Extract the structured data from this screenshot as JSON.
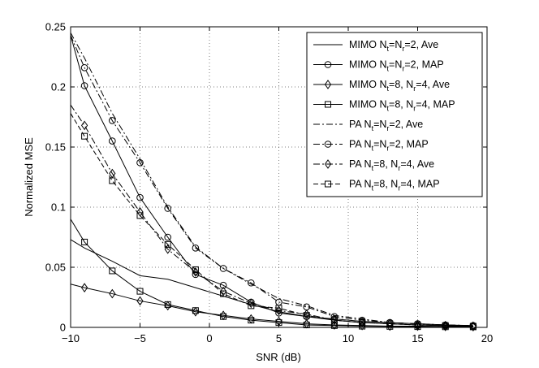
{
  "chart_data": {
    "type": "line",
    "title": "",
    "xlabel": "SNR (dB)",
    "ylabel": "Normalized MSE",
    "xlim": [
      -10,
      20
    ],
    "ylim": [
      0,
      0.25
    ],
    "xticks": [
      -10,
      -5,
      0,
      5,
      10,
      15,
      20
    ],
    "xtick_labels": [
      "−10",
      "−5",
      "0",
      "5",
      "10",
      "15",
      "20"
    ],
    "yticks": [
      0,
      0.05,
      0.1,
      0.15,
      0.2,
      0.25
    ],
    "ytick_labels": [
      "0",
      "0.05",
      "0.1",
      "0.15",
      "0.2",
      "0.25"
    ],
    "legend_position": "top-right",
    "series": [
      {
        "name": "MIMO Nt=Nr=2, Ave",
        "legend": {
          "prefix": "MIMO N",
          "s1": "t",
          "mid": "=N",
          "s2": "r",
          "suffix": "=2, Ave"
        },
        "style": "solid",
        "marker": "none",
        "x": [
          -10,
          -9,
          -7,
          -5,
          -3,
          -1,
          1,
          3,
          5,
          7,
          9,
          11,
          13,
          15,
          17,
          19
        ],
        "y": [
          0.073,
          0.066,
          0.055,
          0.043,
          0.04,
          0.033,
          0.026,
          0.019,
          0.013,
          0.009,
          0.006,
          0.004,
          0.003,
          0.002,
          0.0015,
          0.001
        ]
      },
      {
        "name": "MIMO Nt=Nr=2, MAP",
        "legend": {
          "prefix": "MIMO N",
          "s1": "t",
          "mid": "=N",
          "s2": "r",
          "suffix": "=2, MAP"
        },
        "style": "solid",
        "marker": "circle",
        "x": [
          -10,
          -9,
          -7,
          -5,
          -3,
          -1,
          1,
          3,
          5,
          7,
          9,
          11,
          13,
          15,
          17,
          19
        ],
        "y": [
          0.243,
          0.201,
          0.155,
          0.108,
          0.075,
          0.044,
          0.035,
          0.021,
          0.012,
          0.009,
          0.007,
          0.005,
          0.004,
          0.003,
          0.002,
          0.0015
        ]
      },
      {
        "name": "MIMO Nt=8, Nr=4, Ave",
        "legend": {
          "prefix": "MIMO N",
          "s1": "t",
          "mid": "=8, N",
          "s2": "r",
          "suffix": "=4, Ave"
        },
        "style": "solid",
        "marker": "diamond",
        "x": [
          -10,
          -9,
          -7,
          -5,
          -3,
          -1,
          1,
          3,
          5,
          7,
          9,
          11,
          13,
          15,
          17,
          19
        ],
        "y": [
          0.036,
          0.033,
          0.028,
          0.022,
          0.018,
          0.013,
          0.01,
          0.007,
          0.005,
          0.003,
          0.002,
          0.0015,
          0.001,
          0.001,
          0.0008,
          0.0006
        ]
      },
      {
        "name": "MIMO Nt=8, Nr=4, MAP",
        "legend": {
          "prefix": "MIMO N",
          "s1": "t",
          "mid": "=8, N",
          "s2": "r",
          "suffix": "=4, MAP"
        },
        "style": "solid",
        "marker": "square",
        "x": [
          -10,
          -9,
          -7,
          -5,
          -3,
          -1,
          1,
          3,
          5,
          7,
          9,
          11,
          13,
          15,
          17,
          19
        ],
        "y": [
          0.09,
          0.071,
          0.047,
          0.03,
          0.019,
          0.014,
          0.009,
          0.006,
          0.004,
          0.002,
          0.0015,
          0.001,
          0.0008,
          0.0006,
          0.0005,
          0.0004
        ]
      },
      {
        "name": "PA Nt=Nr=2, Ave",
        "legend": {
          "prefix": "PA N",
          "s1": "t",
          "mid": "=N",
          "s2": "r",
          "suffix": "=2, Ave"
        },
        "style": "dashdot",
        "marker": "none",
        "x": [
          -10,
          -9,
          -7,
          -5,
          -3,
          -1,
          1,
          3,
          5,
          7,
          9,
          11,
          13,
          15,
          17,
          19
        ],
        "y": [
          0.245,
          0.224,
          0.178,
          0.14,
          0.1,
          0.067,
          0.049,
          0.036,
          0.024,
          0.018,
          0.01,
          0.007,
          0.004,
          0.003,
          0.002,
          0.0015
        ]
      },
      {
        "name": "PA Nt=Nr=2, MAP",
        "legend": {
          "prefix": "PA N",
          "s1": "t",
          "mid": "=N",
          "s2": "r",
          "suffix": "=2, MAP"
        },
        "style": "dashdot",
        "marker": "circle",
        "x": [
          -10,
          -9,
          -7,
          -5,
          -3,
          -1,
          1,
          3,
          5,
          7,
          9,
          11,
          13,
          15,
          17,
          19
        ],
        "y": [
          0.243,
          0.216,
          0.172,
          0.137,
          0.099,
          0.066,
          0.049,
          0.037,
          0.021,
          0.017,
          0.009,
          0.006,
          0.004,
          0.003,
          0.002,
          0.0015
        ]
      },
      {
        "name": "PA Nt=8, Nr=4, Ave",
        "legend": {
          "prefix": "PA N",
          "s1": "t",
          "mid": "=8, N",
          "s2": "r",
          "suffix": "=4, Ave"
        },
        "style": "dashdot",
        "marker": "diamond",
        "x": [
          -10,
          -9,
          -7,
          -5,
          -3,
          -1,
          1,
          3,
          5,
          7,
          9,
          11,
          13,
          15,
          17,
          19
        ],
        "y": [
          0.185,
          0.168,
          0.128,
          0.096,
          0.065,
          0.046,
          0.03,
          0.02,
          0.014,
          0.011,
          0.006,
          0.004,
          0.003,
          0.002,
          0.0015,
          0.001
        ]
      },
      {
        "name": "PA Nt=8, Nr=4, MAP",
        "legend": {
          "prefix": "PA N",
          "s1": "t",
          "mid": "=8, N",
          "s2": "r",
          "suffix": "=4, MAP"
        },
        "style": "dashed",
        "marker": "square",
        "x": [
          -10,
          -9,
          -7,
          -5,
          -3,
          -1,
          1,
          3,
          5,
          7,
          9,
          11,
          13,
          15,
          17,
          19
        ],
        "y": [
          0.178,
          0.159,
          0.122,
          0.093,
          0.069,
          0.048,
          0.028,
          0.018,
          0.016,
          0.01,
          0.006,
          0.004,
          0.003,
          0.002,
          0.0015,
          0.001
        ]
      }
    ]
  }
}
